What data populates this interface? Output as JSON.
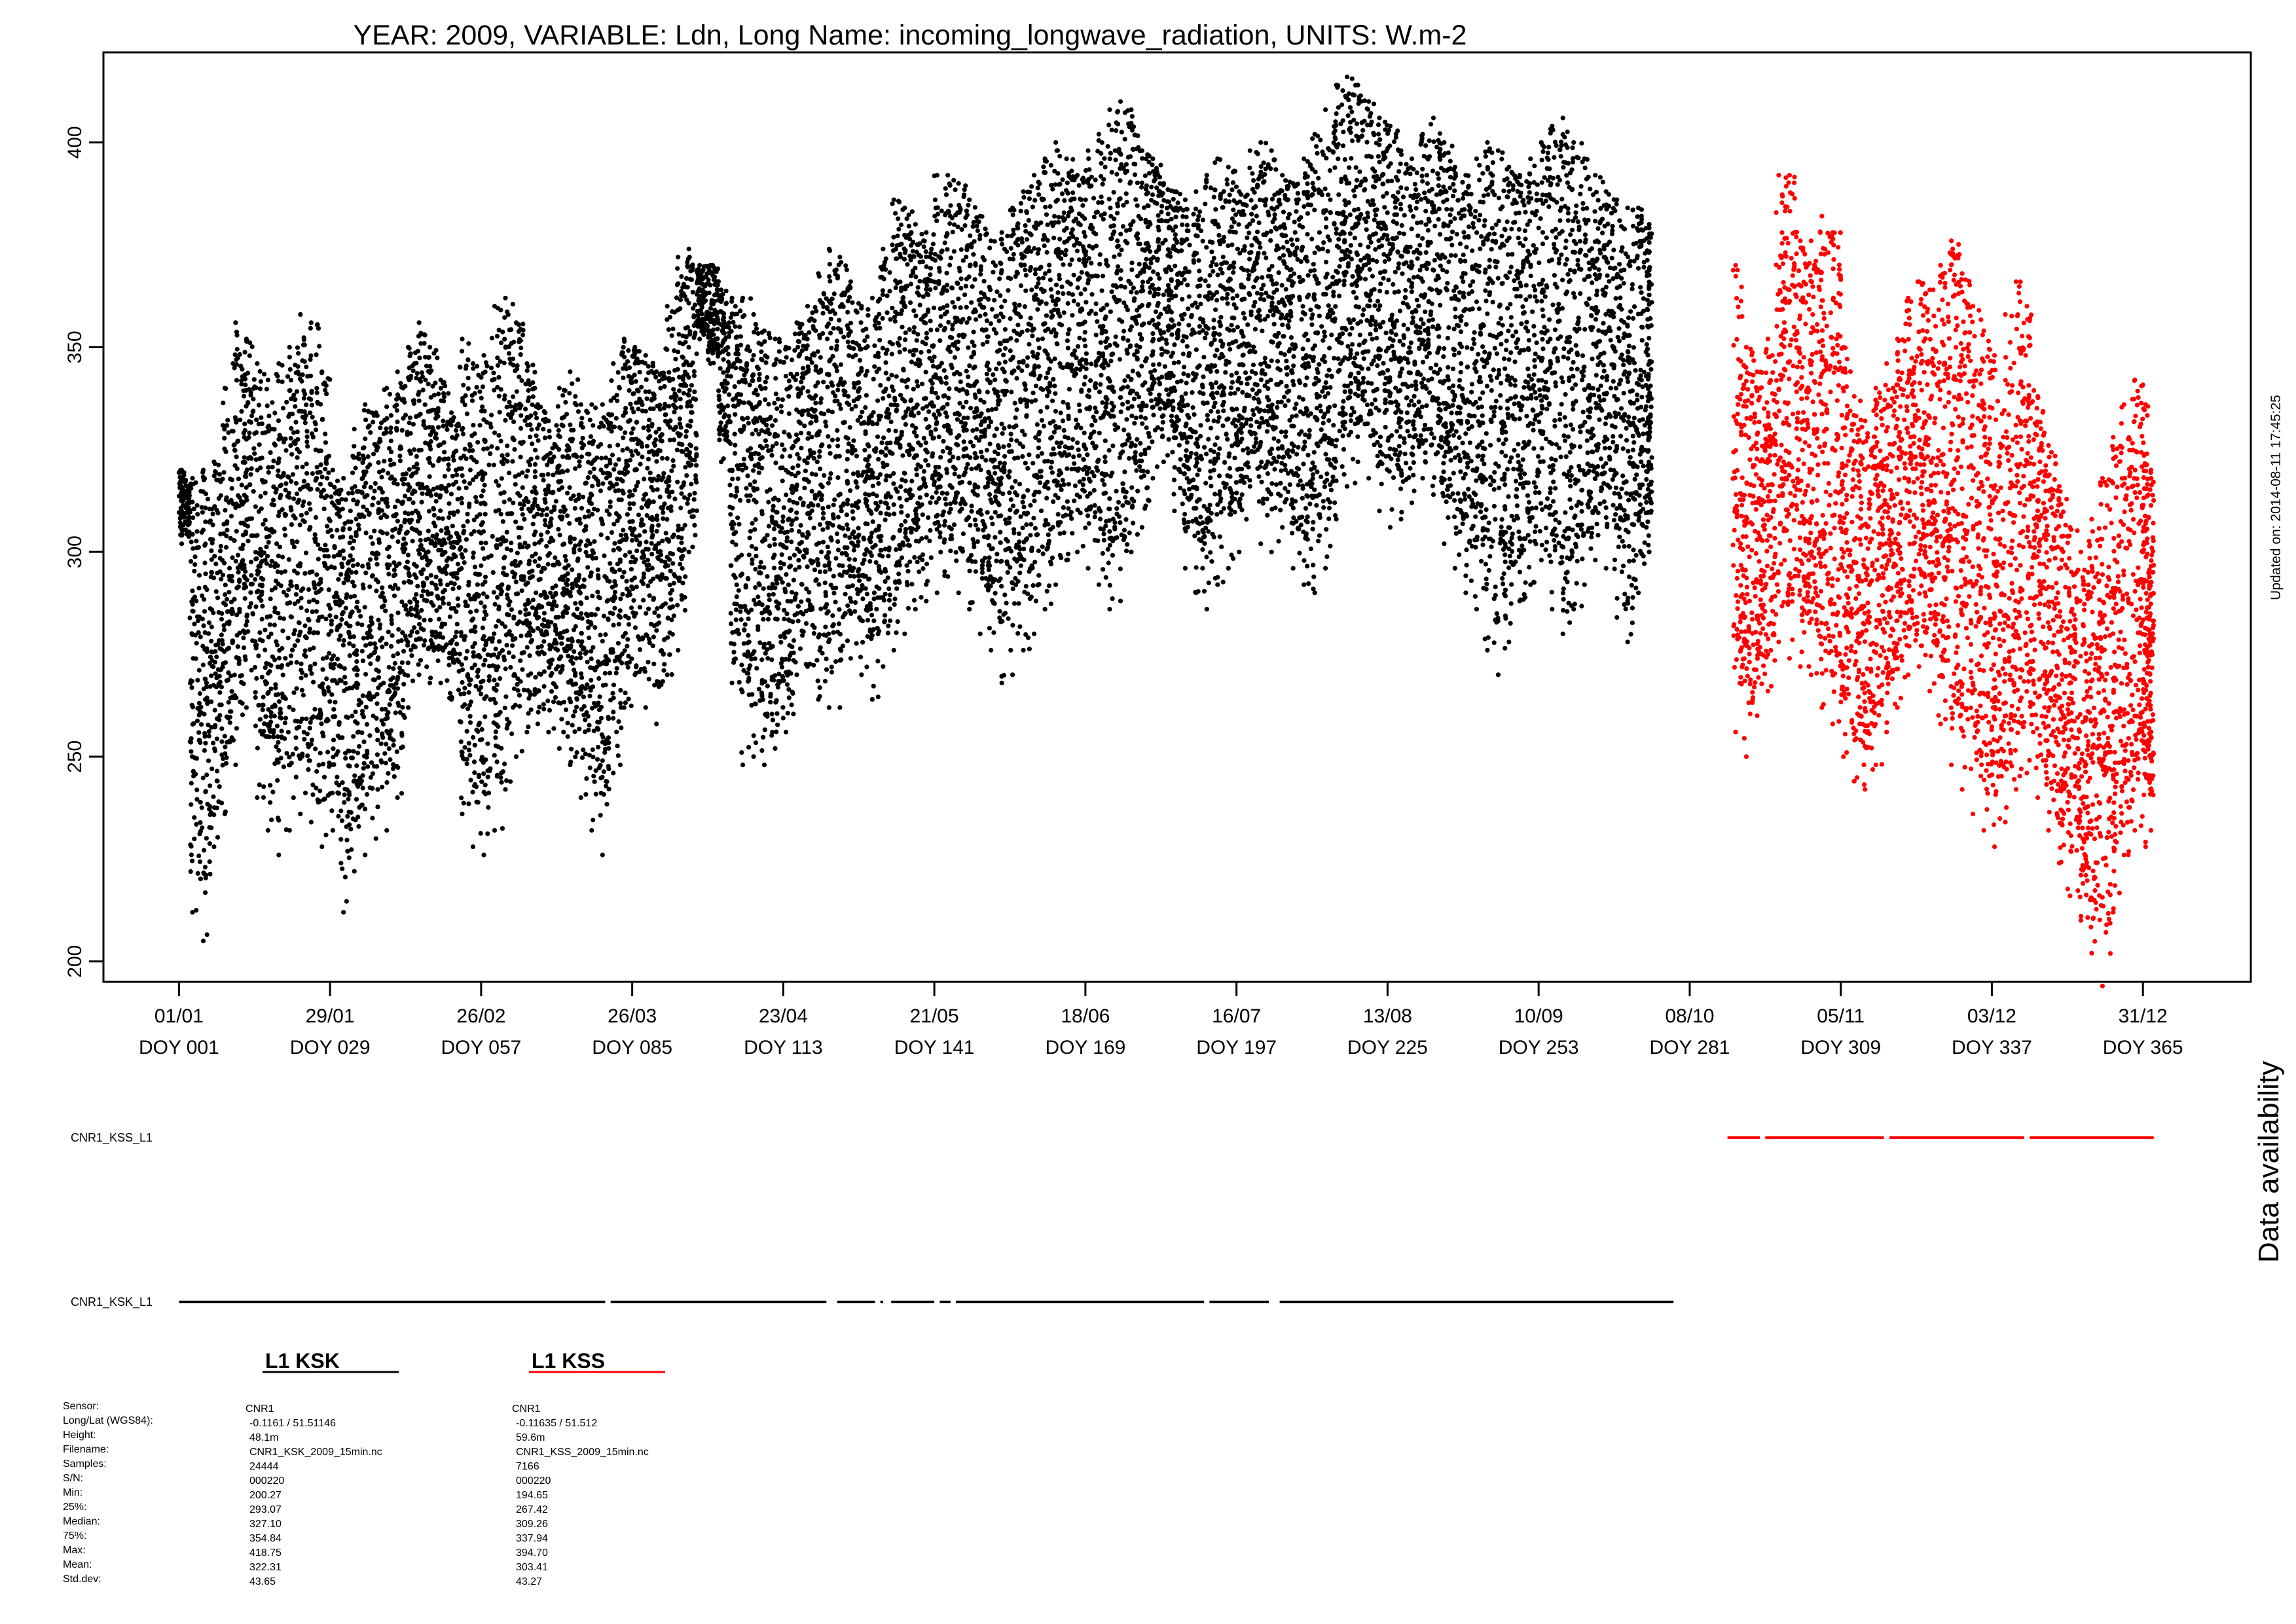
{
  "chart_data": {
    "type": "scatter",
    "title": "YEAR: 2009, VARIABLE: Ldn, Long Name: incoming_longwave_radiation, UNITS: W.m-2",
    "xlabel": "",
    "ylabel": "",
    "xlim": [
      -13,
      385
    ],
    "ylim": [
      195,
      422
    ],
    "y_ticks": [
      200,
      250,
      300,
      350,
      400
    ],
    "x_ticks": [
      {
        "doy": 1,
        "date": "01/01",
        "label": "DOY 001"
      },
      {
        "doy": 29,
        "date": "29/01",
        "label": "DOY 029"
      },
      {
        "doy": 57,
        "date": "26/02",
        "label": "DOY 057"
      },
      {
        "doy": 85,
        "date": "26/03",
        "label": "DOY 085"
      },
      {
        "doy": 113,
        "date": "23/04",
        "label": "DOY 113"
      },
      {
        "doy": 141,
        "date": "21/05",
        "label": "DOY 141"
      },
      {
        "doy": 169,
        "date": "18/06",
        "label": "DOY 169"
      },
      {
        "doy": 197,
        "date": "16/07",
        "label": "DOY 197"
      },
      {
        "doy": 225,
        "date": "13/08",
        "label": "DOY 225"
      },
      {
        "doy": 253,
        "date": "10/09",
        "label": "DOY 253"
      },
      {
        "doy": 281,
        "date": "08/10",
        "label": "DOY 281"
      },
      {
        "doy": 309,
        "date": "05/11",
        "label": "DOY 309"
      },
      {
        "doy": 337,
        "date": "03/12",
        "label": "DOY 337"
      },
      {
        "doy": 365,
        "date": "31/12",
        "label": "DOY 365"
      }
    ],
    "series": [
      {
        "name": "L1 KSK",
        "color": "#000000",
        "doy": [
          1,
          3,
          5,
          7,
          9,
          11,
          13,
          15,
          17,
          19,
          21,
          23,
          25,
          27,
          29,
          31,
          33,
          35,
          37,
          39,
          41,
          43,
          45,
          47,
          49,
          51,
          53,
          55,
          57,
          59,
          61,
          63,
          65,
          67,
          69,
          71,
          73,
          75,
          77,
          79,
          81,
          83,
          85,
          87,
          89,
          91,
          93,
          95,
          97,
          99,
          101,
          103,
          105,
          107,
          109,
          111,
          113,
          115,
          117,
          119,
          121,
          123,
          125,
          127,
          129,
          131,
          133,
          135,
          137,
          139,
          141,
          143,
          145,
          147,
          149,
          151,
          153,
          155,
          157,
          159,
          161,
          163,
          165,
          167,
          169,
          171,
          173,
          175,
          177,
          179,
          181,
          183,
          185,
          187,
          189,
          191,
          193,
          195,
          197,
          199,
          201,
          203,
          205,
          207,
          209,
          211,
          213,
          215,
          217,
          219,
          221,
          223,
          225,
          227,
          229,
          231,
          233,
          235,
          237,
          239,
          241,
          243,
          245,
          247,
          249,
          251,
          253,
          255,
          257,
          259,
          261,
          263,
          265,
          267,
          269,
          271,
          273
        ],
        "min": [
          302,
          212,
          205,
          228,
          236,
          248,
          262,
          240,
          232,
          226,
          232,
          236,
          234,
          228,
          232,
          212,
          222,
          226,
          230,
          232,
          240,
          262,
          270,
          268,
          268,
          264,
          236,
          228,
          226,
          232,
          242,
          250,
          256,
          258,
          256,
          252,
          248,
          240,
          232,
          226,
          246,
          262,
          270,
          262,
          258,
          270,
          276,
          300,
          352,
          346,
          322,
          268,
          248,
          250,
          248,
          252,
          256,
          270,
          272,
          264,
          262,
          262,
          274,
          270,
          264,
          272,
          276,
          280,
          286,
          288,
          290,
          294,
          290,
          286,
          280,
          276,
          268,
          270,
          276,
          280,
          286,
          292,
          298,
          300,
          296,
          292,
          286,
          288,
          300,
          306,
          318,
          322,
          310,
          296,
          290,
          286,
          292,
          296,
          300,
          316,
          302,
          300,
          306,
          296,
          292,
          290,
          296,
          308,
          316,
          322,
          318,
          310,
          306,
          308,
          312,
          318,
          314,
          302,
          296,
          290,
          286,
          276,
          270,
          278,
          288,
          292,
          298,
          286,
          280,
          286,
          292,
          298,
          296,
          284,
          278,
          290,
          300
        ],
        "max": [
          320,
          318,
          320,
          322,
          340,
          356,
          352,
          346,
          342,
          346,
          350,
          358,
          356,
          344,
          320,
          318,
          330,
          336,
          334,
          340,
          344,
          350,
          356,
          350,
          342,
          334,
          352,
          346,
          348,
          360,
          362,
          356,
          346,
          336,
          332,
          340,
          344,
          336,
          336,
          336,
          346,
          352,
          350,
          348,
          344,
          360,
          372,
          374,
          370,
          370,
          364,
          362,
          362,
          358,
          354,
          352,
          350,
          356,
          360,
          368,
          374,
          372,
          366,
          360,
          362,
          374,
          386,
          384,
          380,
          378,
          392,
          392,
          390,
          386,
          382,
          376,
          378,
          384,
          388,
          392,
          396,
          400,
          396,
          392,
          398,
          402,
          408,
          410,
          408,
          398,
          396,
          390,
          388,
          386,
          388,
          392,
          396,
          394,
          388,
          398,
          400,
          398,
          392,
          390,
          396,
          402,
          408,
          414,
          416,
          414,
          410,
          406,
          404,
          398,
          396,
          402,
          406,
          400,
          394,
          392,
          396,
          400,
          398,
          394,
          392,
          396,
          400,
          404,
          406,
          400,
          396,
          392,
          388,
          386,
          384,
          384,
          380
        ]
      },
      {
        "name": "L1 KSS",
        "color": "#ff0000",
        "doy": [
          289,
          291,
          293,
          295,
          297,
          299,
          301,
          303,
          305,
          307,
          309,
          311,
          313,
          315,
          317,
          319,
          321,
          323,
          325,
          327,
          329,
          331,
          333,
          335,
          337,
          339,
          341,
          343,
          345,
          347,
          349,
          351,
          353,
          355,
          357,
          359,
          361,
          363,
          365,
          366
        ],
        "min": [
          256,
          250,
          260,
          266,
          278,
          274,
          272,
          270,
          262,
          258,
          250,
          244,
          242,
          248,
          256,
          262,
          270,
          272,
          266,
          258,
          248,
          242,
          236,
          232,
          228,
          234,
          242,
          246,
          240,
          232,
          224,
          216,
          210,
          202,
          194,
          212,
          226,
          232,
          228,
          232
        ],
        "max": [
          370,
          350,
          344,
          352,
          392,
          392,
          376,
          376,
          382,
          378,
          350,
          338,
          332,
          340,
          346,
          352,
          362,
          366,
          364,
          370,
          376,
          368,
          360,
          354,
          348,
          358,
          366,
          360,
          338,
          326,
          316,
          306,
          300,
          308,
          318,
          328,
          336,
          342,
          336,
          320
        ]
      }
    ],
    "availability": {
      "side_label": "Data availability",
      "rows": [
        {
          "name": "CNR1_KSS_L1",
          "color": "#ff0000",
          "segments": [
            [
              288,
              294
            ],
            [
              295,
              317
            ],
            [
              318,
              343
            ],
            [
              344,
              367
            ]
          ]
        },
        {
          "name": "CNR1_KSK_L1",
          "color": "#000000",
          "segments": [
            [
              1,
              80
            ],
            [
              81,
              121
            ],
            [
              123,
              130
            ],
            [
              131,
              131.5
            ],
            [
              133,
              141
            ],
            [
              142,
              144
            ],
            [
              145,
              191
            ],
            [
              192,
              203
            ],
            [
              205,
              278
            ]
          ]
        }
      ]
    },
    "updated_label": "Updated on: 2014-08-11 17:45:25",
    "legend": [
      {
        "header": "L1 KSK",
        "color": "#000000"
      },
      {
        "header": "L1 KSS",
        "color": "#ff0000"
      }
    ],
    "stats": {
      "labels": [
        "Sensor:",
        "Long/Lat (WGS84):",
        "Height:",
        "Filename:",
        "Samples:",
        "S/N:",
        "Min:",
        "25%:",
        "Median:",
        "75%:",
        "Max:",
        "Mean:",
        "Std.dev:"
      ],
      "columns": [
        [
          "CNR1",
          "-0.1161 / 51.51146",
          "48.1m",
          "CNR1_KSK_2009_15min.nc",
          "24444",
          "000220",
          "200.27",
          "293.07",
          "327.10",
          "354.84",
          "418.75",
          "322.31",
          "43.65"
        ],
        [
          "CNR1",
          "-0.11635 / 51.512",
          "59.6m",
          "CNR1_KSS_2009_15min.nc",
          "7166",
          "000220",
          "194.65",
          "267.42",
          "309.26",
          "337.94",
          "394.70",
          "303.41",
          "43.27"
        ]
      ]
    }
  }
}
